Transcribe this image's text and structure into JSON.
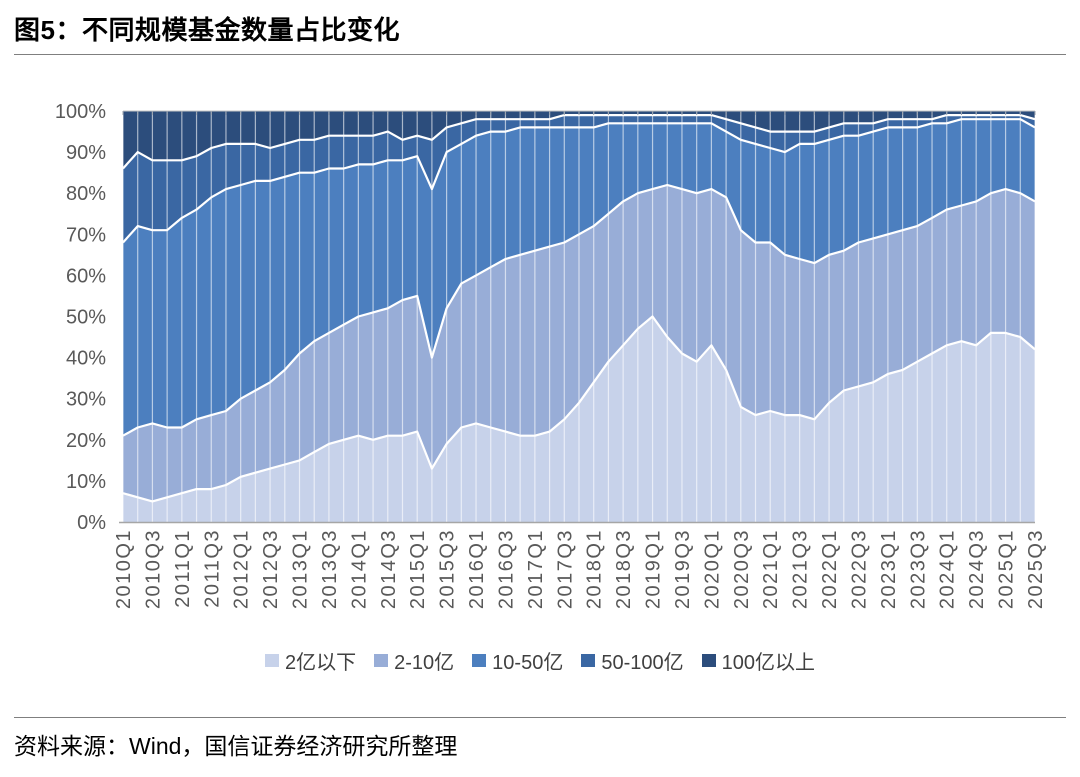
{
  "figure": {
    "title": "图5：不同规模基金数量占比变化",
    "source": "资料来源：Wind，国信证券经济研究所整理"
  },
  "chart_data": {
    "type": "area",
    "stacked": true,
    "unit": "percent_share",
    "title": "图5：不同规模基金数量占比变化",
    "xlabel": "",
    "ylabel": "",
    "ylim": [
      0,
      100
    ],
    "y_ticks": [
      "0%",
      "10%",
      "20%",
      "30%",
      "40%",
      "50%",
      "60%",
      "70%",
      "80%",
      "90%",
      "100%"
    ],
    "x_tick_every": 2,
    "legend_position": "bottom",
    "gridlines": "vertical-white",
    "categories": [
      "2010Q1",
      "2010Q2",
      "2010Q3",
      "2010Q4",
      "2011Q1",
      "2011Q2",
      "2011Q3",
      "2011Q4",
      "2012Q1",
      "2012Q2",
      "2012Q3",
      "2012Q4",
      "2013Q1",
      "2013Q2",
      "2013Q3",
      "2013Q4",
      "2014Q1",
      "2014Q2",
      "2014Q3",
      "2014Q4",
      "2015Q1",
      "2015Q2",
      "2015Q3",
      "2015Q4",
      "2016Q1",
      "2016Q2",
      "2016Q3",
      "2016Q4",
      "2017Q1",
      "2017Q2",
      "2017Q3",
      "2017Q4",
      "2018Q1",
      "2018Q2",
      "2018Q3",
      "2018Q4",
      "2019Q1",
      "2019Q2",
      "2019Q3",
      "2019Q4",
      "2020Q1",
      "2020Q2",
      "2020Q3",
      "2020Q4",
      "2021Q1",
      "2021Q2",
      "2021Q3",
      "2021Q4",
      "2022Q1",
      "2022Q2",
      "2022Q3",
      "2022Q4",
      "2023Q1",
      "2023Q2",
      "2023Q3",
      "2023Q4",
      "2024Q1",
      "2024Q2",
      "2024Q3",
      "2024Q4",
      "2025Q1",
      "2025Q2",
      "2025Q3"
    ],
    "series": [
      {
        "name": "2亿以下",
        "color": "#c7d2ea",
        "values": [
          7,
          6,
          5,
          6,
          7,
          8,
          8,
          9,
          11,
          12,
          13,
          14,
          15,
          17,
          19,
          20,
          21,
          20,
          21,
          21,
          22,
          13,
          19,
          23,
          24,
          23,
          22,
          21,
          21,
          22,
          25,
          29,
          34,
          39,
          43,
          47,
          50,
          45,
          41,
          39,
          43,
          37,
          28,
          26,
          27,
          26,
          26,
          25,
          29,
          32,
          33,
          34,
          36,
          37,
          39,
          41,
          43,
          44,
          43,
          46,
          46,
          45,
          42
        ]
      },
      {
        "name": "2-10亿",
        "color": "#98add7",
        "values": [
          14,
          17,
          19,
          17,
          16,
          17,
          18,
          18,
          19,
          20,
          21,
          23,
          26,
          27,
          27,
          28,
          29,
          31,
          31,
          33,
          33,
          27,
          33,
          35,
          36,
          39,
          42,
          44,
          45,
          45,
          43,
          41,
          38,
          36,
          35,
          33,
          31,
          37,
          40,
          41,
          38,
          42,
          43,
          42,
          41,
          39,
          38,
          38,
          36,
          34,
          35,
          35,
          34,
          34,
          33,
          33,
          33,
          33,
          35,
          34,
          35,
          35,
          36
        ]
      },
      {
        "name": "10-50亿",
        "color": "#4c7fbf",
        "values": [
          47,
          49,
          47,
          48,
          51,
          51,
          53,
          54,
          52,
          51,
          49,
          47,
          44,
          41,
          40,
          38,
          37,
          36,
          36,
          34,
          34,
          41,
          38,
          34,
          34,
          33,
          31,
          31,
          30,
          29,
          28,
          26,
          24,
          22,
          19,
          17,
          16,
          15,
          16,
          17,
          16,
          16,
          22,
          24,
          23,
          25,
          28,
          29,
          28,
          28,
          26,
          26,
          26,
          25,
          24,
          23,
          21,
          21,
          20,
          18,
          17,
          18,
          18
        ]
      },
      {
        "name": "50-100亿",
        "color": "#3a67a3",
        "values": [
          18,
          18,
          17,
          17,
          14,
          13,
          12,
          11,
          10,
          9,
          8,
          8,
          8,
          8,
          8,
          8,
          7,
          7,
          7,
          5,
          5,
          12,
          6,
          5,
          4,
          3,
          3,
          2,
          2,
          2,
          3,
          3,
          3,
          2,
          2,
          2,
          2,
          2,
          2,
          2,
          2,
          3,
          4,
          4,
          4,
          5,
          3,
          3,
          3,
          3,
          3,
          2,
          2,
          2,
          2,
          1,
          2,
          1,
          1,
          1,
          1,
          1,
          2
        ]
      },
      {
        "name": "100亿以上",
        "color": "#2c4d7c",
        "values": [
          14,
          10,
          12,
          12,
          12,
          11,
          9,
          8,
          8,
          8,
          9,
          8,
          7,
          7,
          6,
          6,
          6,
          6,
          5,
          7,
          6,
          7,
          4,
          3,
          2,
          2,
          2,
          2,
          2,
          2,
          1,
          1,
          1,
          1,
          1,
          1,
          1,
          1,
          1,
          1,
          1,
          2,
          3,
          4,
          5,
          5,
          5,
          5,
          4,
          3,
          3,
          3,
          2,
          2,
          2,
          2,
          1,
          1,
          1,
          1,
          1,
          1,
          2
        ]
      }
    ],
    "axis_label_color": "#595959",
    "boundary_line_color": "#ffffff"
  }
}
